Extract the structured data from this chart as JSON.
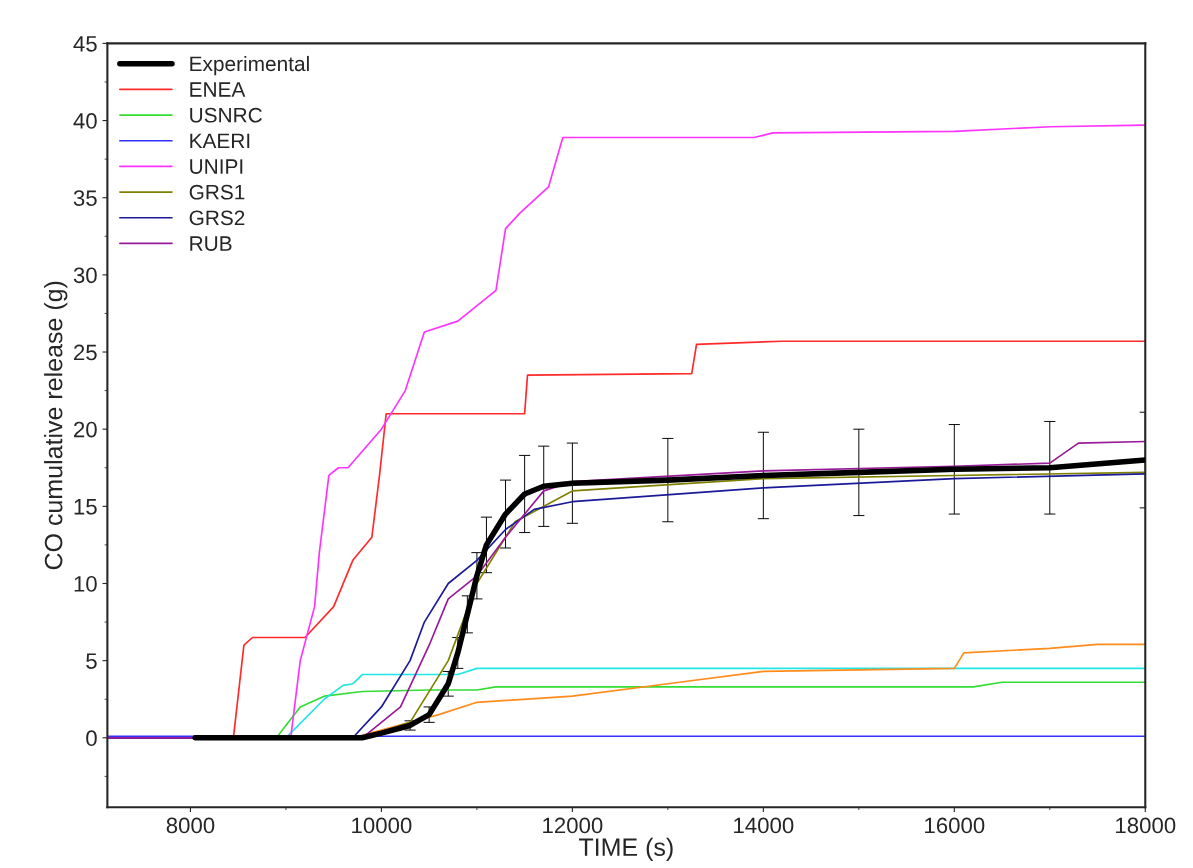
{
  "chart_data": {
    "type": "line",
    "xlabel": "TIME (s)",
    "ylabel": "CO cumulative release (g)",
    "xlim": [
      7130,
      18000
    ],
    "xticks": [
      8000,
      10000,
      12000,
      14000,
      16000,
      18000
    ],
    "ylim": [
      -4.5,
      45
    ],
    "yticks": [
      0,
      5,
      10,
      15,
      20,
      25,
      30,
      35,
      40,
      45
    ],
    "grid": false,
    "legend": "top left",
    "marker": "none",
    "line_style": "solid",
    "series": [
      {
        "name": "Experimental",
        "color": "#000000",
        "x": [
          8050,
          9800,
          10000,
          10300,
          10500,
          10700,
          10800,
          10900,
          11000,
          11100,
          11300,
          11500,
          11700,
          12000,
          13000,
          14000,
          15000,
          16000,
          17000,
          18000
        ],
        "values": [
          0,
          0,
          0.3,
          0.8,
          1.5,
          3.5,
          5.5,
          8,
          10.5,
          12.5,
          14.5,
          15.8,
          16.3,
          16.5,
          16.7,
          17.0,
          17.2,
          17.4,
          17.5,
          18.0
        ],
        "errors": [
          null,
          null,
          null,
          0.3,
          0.5,
          0.8,
          1.0,
          1.2,
          1.5,
          1.8,
          2.2,
          2.5,
          2.6,
          2.6,
          2.7,
          2.8,
          2.8,
          2.9,
          3.0,
          3.1
        ]
      },
      {
        "name": "ENEA",
        "color": "#ff2a2a",
        "x": [
          7130,
          8450,
          8560,
          8650,
          9200,
          9500,
          9700,
          9900,
          9980,
          10050,
          11500,
          11530,
          13250,
          13300,
          14200,
          18000
        ],
        "values": [
          0,
          0,
          6,
          6.5,
          6.5,
          8.5,
          11.5,
          13,
          17,
          21,
          21,
          23.5,
          23.6,
          25.5,
          25.7,
          25.7
        ]
      },
      {
        "name": "USNRC",
        "color": "#33dd33",
        "x": [
          7130,
          8900,
          9150,
          9400,
          9800,
          10500,
          11000,
          11200,
          16200,
          16500,
          18000
        ],
        "values": [
          0,
          0,
          2,
          2.7,
          3,
          3.1,
          3.1,
          3.3,
          3.3,
          3.6,
          3.6
        ]
      },
      {
        "name": "KAERI",
        "color": "#3333ff",
        "x": [
          7130,
          18000
        ],
        "values": [
          0.1,
          0.1
        ]
      },
      {
        "color": "#22e5e5",
        "x": [
          7130,
          9000,
          9400,
          9600,
          9700,
          9800,
          10800,
          11000,
          18000
        ],
        "values": [
          0,
          0,
          2.5,
          3.4,
          3.5,
          4.1,
          4.1,
          4.5,
          4.5
        ]
      },
      {
        "name": "UNIPI",
        "color": "#ff33ff",
        "x": [
          7130,
          9050,
          9150,
          9300,
          9350,
          9450,
          9550,
          9650,
          10000,
          10250,
          10450,
          10800,
          11200,
          11300,
          11450,
          11750,
          11900,
          13900,
          14100,
          16000,
          17000,
          18000
        ],
        "values": [
          0,
          0,
          5,
          8.5,
          12,
          17,
          17.5,
          17.5,
          20,
          22.5,
          26.3,
          27,
          29,
          33,
          34,
          35.7,
          38.9,
          38.9,
          39.2,
          39.3,
          39.6,
          39.7
        ]
      },
      {
        "color": "#ff8c1a",
        "x": [
          7130,
          9700,
          10300,
          10600,
          11000,
          12000,
          13000,
          14000,
          16000,
          16100,
          17000,
          17500,
          18000
        ],
        "values": [
          0,
          0,
          1,
          1.5,
          2.3,
          2.7,
          3.5,
          4.3,
          4.5,
          5.5,
          5.8,
          6.05,
          6.05
        ]
      },
      {
        "name": "GRS1",
        "color": "#808000",
        "x": [
          7130,
          9800,
          10300,
          10700,
          11000,
          11400,
          12000,
          14000,
          16000,
          18000
        ],
        "values": [
          0,
          0,
          1,
          5,
          10,
          14,
          16,
          16.8,
          17,
          17.2
        ]
      },
      {
        "name": "GRS2",
        "color": "#1a1a99",
        "x": [
          7130,
          9700,
          10000,
          10300,
          10450,
          10700,
          11000,
          11300,
          11600,
          12000,
          14000,
          16000,
          18000
        ],
        "values": [
          0,
          0,
          2,
          5,
          7.5,
          10,
          11.5,
          13.5,
          14.8,
          15.3,
          16.2,
          16.8,
          17.1
        ]
      },
      {
        "name": "RUB",
        "color": "#991a99",
        "x": [
          7130,
          9800,
          10200,
          10500,
          10700,
          11000,
          11300,
          11700,
          12000,
          14000,
          16000,
          17000,
          17300,
          18000
        ],
        "values": [
          0,
          0,
          2,
          6,
          9,
          10.5,
          13,
          16,
          16.6,
          17.3,
          17.6,
          17.8,
          19.1,
          19.2
        ]
      }
    ]
  }
}
